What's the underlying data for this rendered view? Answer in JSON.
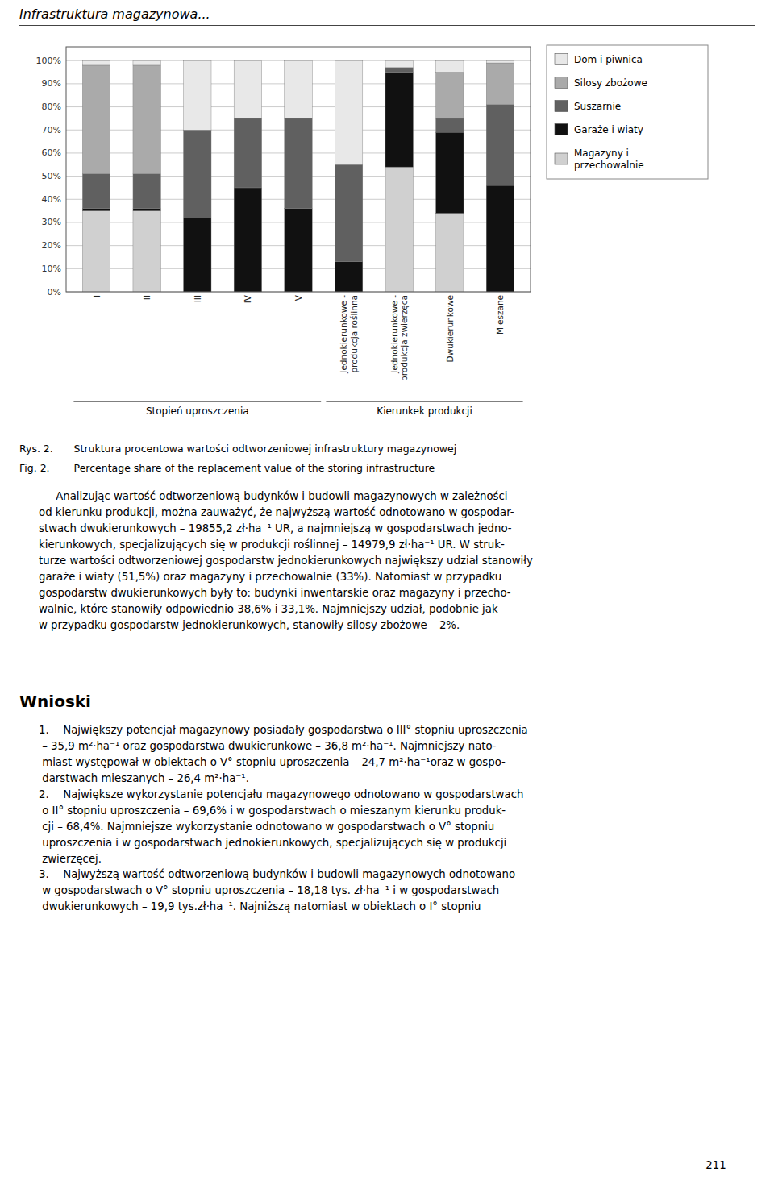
{
  "chart_data": {
    "type": "bar",
    "stacked": true,
    "grid": true,
    "legend": "right",
    "categories": [
      "I",
      "II",
      "III",
      "IV",
      "V",
      "Jednokierunkowe -\nprodukcja roślinna",
      "Jednokierunkowe -\nprodukcja zwierzęca",
      "Dwukierunkowe",
      "Mieszane"
    ],
    "series": [
      {
        "name": "Magazyny i\nprzechowalnie",
        "color": "#d0d0d0",
        "values": [
          35,
          35,
          0,
          0,
          0,
          0,
          54,
          34,
          0
        ]
      },
      {
        "name": "Garaże i wiaty",
        "color": "#111111",
        "values": [
          1,
          1,
          32,
          45,
          36,
          13,
          41,
          35,
          46
        ]
      },
      {
        "name": "Suszarnie",
        "color": "#606060",
        "values": [
          15,
          15,
          38,
          30,
          39,
          42,
          2,
          6,
          35
        ]
      },
      {
        "name": "Silosy zbożowe",
        "color": "#aaaaaa",
        "values": [
          47,
          47,
          0,
          0,
          0,
          0,
          0,
          20,
          18
        ]
      },
      {
        "name": "Dom i piwnica",
        "color": "#e8e8e8",
        "values": [
          2,
          2,
          30,
          25,
          25,
          45,
          3,
          5,
          1
        ]
      }
    ],
    "ylim": [
      0,
      106
    ],
    "yticks": [
      {
        "value": 0,
        "label": "0%"
      },
      {
        "value": 10,
        "label": "10%"
      },
      {
        "value": 20,
        "label": "20%"
      },
      {
        "value": 30,
        "label": "30%"
      },
      {
        "value": 40,
        "label": "40%"
      },
      {
        "value": 50,
        "label": "50%"
      },
      {
        "value": 60,
        "label": "60%"
      },
      {
        "value": 70,
        "label": "70%"
      },
      {
        "value": 80,
        "label": "80%"
      },
      {
        "value": 90,
        "label": "90%"
      },
      {
        "value": 100,
        "label": "100%"
      }
    ],
    "groups": [
      {
        "name": "Stopień uproszczenia",
        "categories": [
          "I",
          "II",
          "III",
          "IV",
          "V"
        ]
      },
      {
        "name": "Kierunkek produkcji",
        "categories": [
          "Jednokierunkowe -\nprodukcja roślinna",
          "Jednokierunkowe -\nprodukcja zwierzęca",
          "Dwukierunkowe",
          "Mieszane"
        ]
      }
    ]
  },
  "header_text": "Infrastruktura magazynowa...",
  "caption1": "Rys. 2.\t Struktura procentowa wartości odtworzeniowej infrastruktury magazynowej",
  "caption2": "Fig. 2.\t Percentage share of the replacement value of the storing infrastructure",
  "body_text": "     Analizując wartość odtworzeniową budynków i budowli magazynowych w zależności\nod kierunku produkcji, można zauważyć, że najwyższą wartość odnotowano w gospodar-\nstwach dwukierunkowych – 19855,2 zł·ha⁻¹ UR, a najmniejszą w gospodarstwach jedno-\nkierunkowych, specjalizujących się w produkcji roślinnej – 14979,9 zł·ha⁻¹ UR. W struk-\nturze wartości odtworzeniowej gospodarstw jednokierunkowych największy udział stanowiły\ngaraże i wiaty (51,5%) oraz magazyny i przechowalnie (33%). Natomiast w przypadku\ngospodarstw dwukierunkowych były to: budynki inwentarskie oraz magazyny i przecho-\nwalnie, które stanowiły odpowiednio 38,6% i 33,1%. Najmniejszy udział, podobnie jak\nw przypadku gospodarstw jednokierunkowych, stanowiły silosy zbożowe – 2%.",
  "wnioski_title": "Wnioski",
  "wnioski_text": "1.  Największy potencjał magazynowy posiadały gospodarstwa o III° stopniu uproszczenia\n – 35,9 m²·ha⁻¹ oraz gospodarstwa dwukierunkowe – 36,8 m²·ha⁻¹. Najmniejszy nato-\n miast występował w obiektach o V° stopniu uproszczenia – 24,7 m²·ha⁻¹oraz w gospo-\n darstwach mieszanych – 26,4 m²·ha⁻¹.\n2.  Największe wykorzystanie potencjału magazynowego odnotowano w gospodarstwach\n o II° stopniu uproszczenia – 69,6% i w gospodarstwach o mieszanym kierunku produk-\n cji – 68,4%. Najmniejsze wykorzystanie odnotowano w gospodarstwach o V° stopniu\n uproszczenia i w gospodarstwach jednokierunkowych, specjalizujących się w produkcji\n zwierzęcej.\n3.  Najwyższą wartość odtworzeniową budynków i budowli magazynowych odnotowano\n w gospodarstwach o V° stopniu uproszczenia – 18,18 tys. zł·ha⁻¹ i w gospodarstwach\n dwukierunkowych – 19,9 tys.zł·ha⁻¹. Najniższą natomiast w obiektach o I° stopniu",
  "page_number": "211"
}
